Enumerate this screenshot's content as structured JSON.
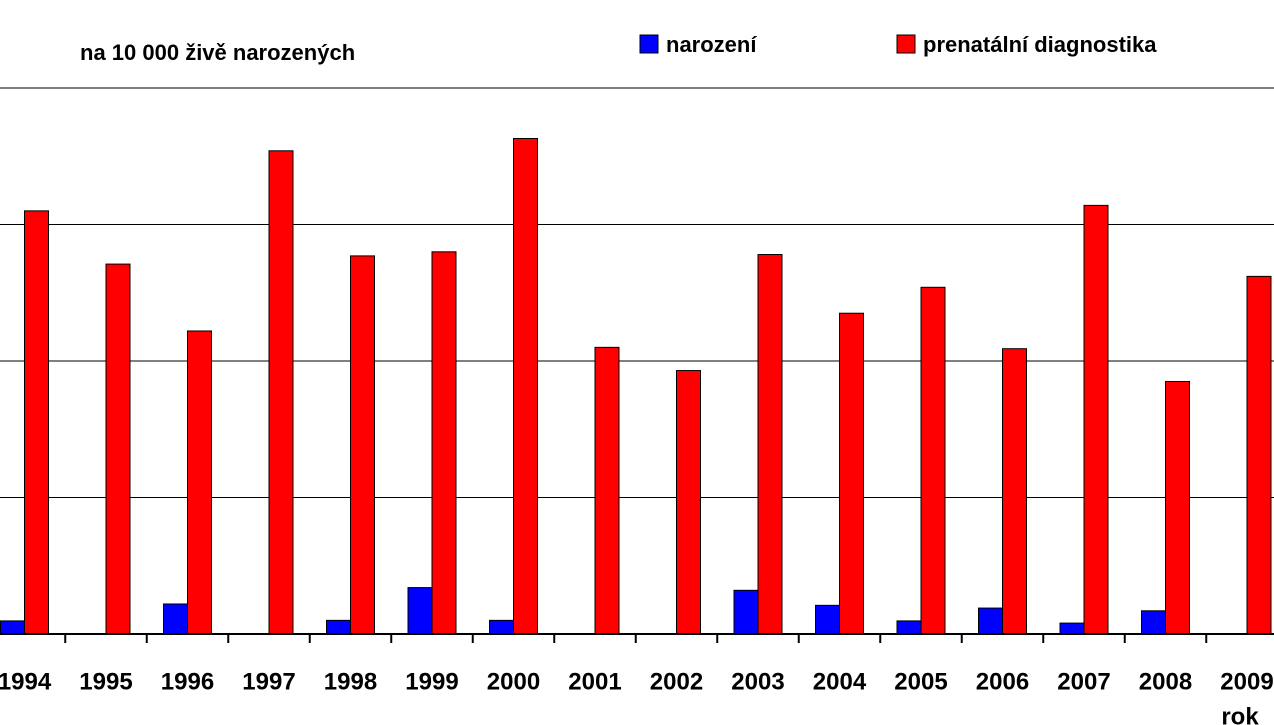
{
  "chart_data": {
    "type": "bar",
    "title": "na 10 000 živě narozených",
    "x_label": "rok",
    "categories": [
      "1994",
      "1995",
      "1996",
      "1997",
      "1998",
      "1999",
      "2000",
      "2001",
      "2002",
      "2003",
      "2004",
      "2005",
      "2006",
      "2007",
      "2008",
      "2009"
    ],
    "series": [
      {
        "name": "narození",
        "color": "#0000ff",
        "values": [
          0.48,
          0,
          1.1,
          0,
          0.5,
          1.7,
          0.5,
          0,
          0,
          1.6,
          1.05,
          0.48,
          0.95,
          0.4,
          0.85,
          0
        ]
      },
      {
        "name": "prenatální diagnostika",
        "color": "#ff0000",
        "values": [
          15.5,
          13.55,
          11.1,
          17.7,
          13.85,
          14.0,
          18.15,
          10.5,
          9.65,
          13.9,
          11.75,
          12.7,
          10.45,
          15.7,
          9.25,
          13.1
        ]
      }
    ],
    "ylim": [
      0,
      20
    ],
    "yticks": [
      0,
      5,
      10,
      15,
      20
    ],
    "grid": true
  }
}
